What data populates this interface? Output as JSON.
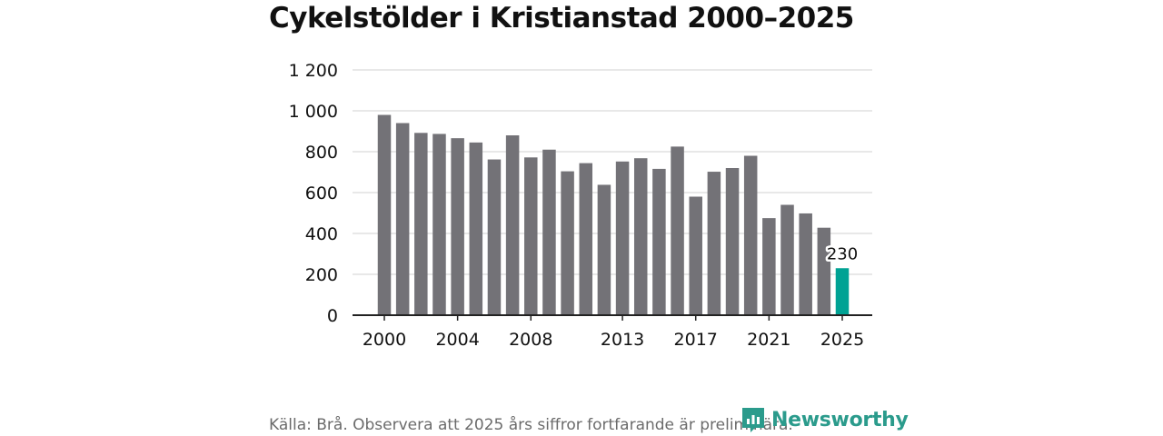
{
  "colors": {
    "bar": "#737277",
    "highlight": "#00a294",
    "grid": "#d9d9d9",
    "axis": "#222222",
    "text": "#111111",
    "source": "#6b6b6b",
    "brand": "#2b9b8c"
  },
  "source_text": "Källa: Brå. Observera att 2025 års siffror fortfarande är preliminära.",
  "brand": {
    "name": "Newsworthy",
    "icon": "newsworthy-chart-icon"
  },
  "chart_data": {
    "type": "bar",
    "title": "Cykelstölder i Kristianstad 2000–2025",
    "xlabel": "",
    "ylabel": "",
    "categories": [
      "2000",
      "2001",
      "2002",
      "2003",
      "2004",
      "2005",
      "2006",
      "2007",
      "2008",
      "2009",
      "2010",
      "2011",
      "2012",
      "2013",
      "2014",
      "2015",
      "2016",
      "2017",
      "2018",
      "2019",
      "2020",
      "2021",
      "2022",
      "2023",
      "2024",
      "2025"
    ],
    "values": [
      980,
      940,
      892,
      887,
      866,
      845,
      762,
      880,
      772,
      810,
      704,
      744,
      638,
      752,
      768,
      716,
      825,
      580,
      702,
      720,
      780,
      475,
      540,
      498,
      428,
      230
    ],
    "ylim": [
      0,
      1200
    ],
    "yticks": [
      0,
      200,
      400,
      600,
      800,
      1000,
      1200
    ],
    "ytick_labels": [
      "0",
      "200",
      "400",
      "600",
      "800",
      "1 000",
      "1 200"
    ],
    "xtick_labels": [
      "2000",
      "2004",
      "2008",
      "2013",
      "2017",
      "2021",
      "2025"
    ],
    "highlight_category": "2025",
    "annotation": {
      "category": "2025",
      "text": "230"
    },
    "grid": true
  }
}
